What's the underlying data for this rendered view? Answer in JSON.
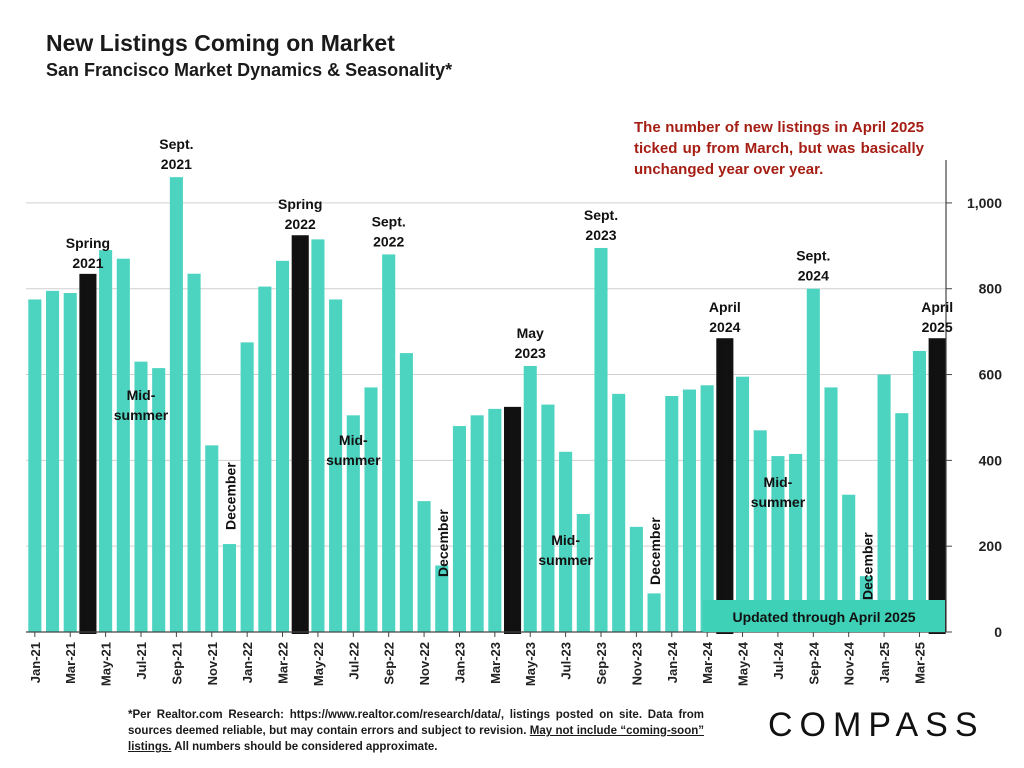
{
  "title": "New Listings Coming on Market",
  "subtitle": "San Francisco Market Dynamics & Seasonality*",
  "callout": "The number of new listings in April 2025 ticked up from March, but was basically unchanged year over year.",
  "footnote": {
    "part1": "*Per Realtor.com Research:  https://www.realtor.com/research/data/, listings posted on site. Data from sources deemed reliable, but may contain errors and subject to revision. ",
    "part2": "May not include “coming-soon” listings.",
    "part3": " All numbers should be considered approximate."
  },
  "logo": "COMPASS",
  "updated_label": "Updated through April 2025",
  "colors": {
    "bar": "#4dd4c0",
    "highlight": "#111111",
    "callout": "#a51e14",
    "updated_bg": "#3fd0b8"
  },
  "chart_data": {
    "type": "bar",
    "categories": [
      "Jan-21",
      "Feb-21",
      "Mar-21",
      "Apr-21",
      "May-21",
      "Jun-21",
      "Jul-21",
      "Aug-21",
      "Sep-21",
      "Oct-21",
      "Nov-21",
      "Dec-21",
      "Jan-22",
      "Feb-22",
      "Mar-22",
      "Apr-22",
      "May-22",
      "Jun-22",
      "Jul-22",
      "Aug-22",
      "Sep-22",
      "Oct-22",
      "Nov-22",
      "Dec-22",
      "Jan-23",
      "Feb-23",
      "Mar-23",
      "Apr-23",
      "May-23",
      "Jun-23",
      "Jul-23",
      "Aug-23",
      "Sep-23",
      "Oct-23",
      "Nov-23",
      "Dec-23",
      "Jan-24",
      "Feb-24",
      "Mar-24",
      "Apr-24",
      "May-24",
      "Jun-24",
      "Jul-24",
      "Aug-24",
      "Sep-24",
      "Oct-24",
      "Nov-24",
      "Dec-24",
      "Jan-25",
      "Feb-25",
      "Mar-25",
      "Apr-25"
    ],
    "x_tick_labels": [
      "Jan-21",
      "Mar-21",
      "May-21",
      "Jul-21",
      "Sep-21",
      "Nov-21",
      "Jan-22",
      "Mar-22",
      "May-22",
      "Jul-22",
      "Sep-22",
      "Nov-22",
      "Jan-23",
      "Mar-23",
      "May-23",
      "Jul-23",
      "Sep-23",
      "Nov-23",
      "Jan-24",
      "Mar-24",
      "May-24",
      "Jul-24",
      "Sep-24",
      "Nov-24",
      "Jan-25",
      "Mar-25"
    ],
    "values": [
      775,
      795,
      790,
      830,
      890,
      870,
      630,
      615,
      1060,
      835,
      435,
      205,
      675,
      805,
      865,
      920,
      915,
      775,
      505,
      570,
      880,
      650,
      305,
      155,
      480,
      505,
      520,
      520,
      620,
      530,
      420,
      275,
      895,
      555,
      245,
      90,
      550,
      565,
      575,
      680,
      595,
      470,
      410,
      415,
      800,
      570,
      320,
      130,
      600,
      510,
      655,
      680
    ],
    "highlighted": [
      "Apr-21",
      "Apr-22",
      "Apr-23",
      "Apr-24",
      "Apr-25"
    ],
    "ylim": [
      0,
      1100
    ],
    "yticks": [
      0,
      200,
      400,
      600,
      800,
      1000
    ],
    "ytick_labels": [
      "0",
      "200",
      "400",
      "600",
      "800",
      "1,000"
    ],
    "grid": true,
    "annotations": [
      {
        "text": "Spring\n2021",
        "index": 3,
        "position": "above"
      },
      {
        "text": "Sept.\n2021",
        "index": 8,
        "position": "above"
      },
      {
        "text": "Mid-\nsummer",
        "index": 6,
        "position": "inside"
      },
      {
        "text": "December",
        "index": 11,
        "position": "vertical"
      },
      {
        "text": "Spring\n2022",
        "index": 15,
        "position": "above"
      },
      {
        "text": "Sept.\n2022",
        "index": 20,
        "position": "above"
      },
      {
        "text": "Mid-\nsummer",
        "index": 18,
        "position": "inside"
      },
      {
        "text": "December",
        "index": 23,
        "position": "vertical"
      },
      {
        "text": "May\n2023",
        "index": 28,
        "position": "above"
      },
      {
        "text": "Sept.\n2023",
        "index": 32,
        "position": "above"
      },
      {
        "text": "Mid-\nsummer",
        "index": 30,
        "position": "inside"
      },
      {
        "text": "December",
        "index": 35,
        "position": "vertical"
      },
      {
        "text": "April\n2024",
        "index": 39,
        "position": "above"
      },
      {
        "text": "Sept.\n2024",
        "index": 44,
        "position": "above"
      },
      {
        "text": "Mid-\nsummer",
        "index": 42,
        "position": "inside"
      },
      {
        "text": "December",
        "index": 47,
        "position": "vertical"
      },
      {
        "text": "April\n2025",
        "index": 51,
        "position": "above"
      }
    ]
  }
}
